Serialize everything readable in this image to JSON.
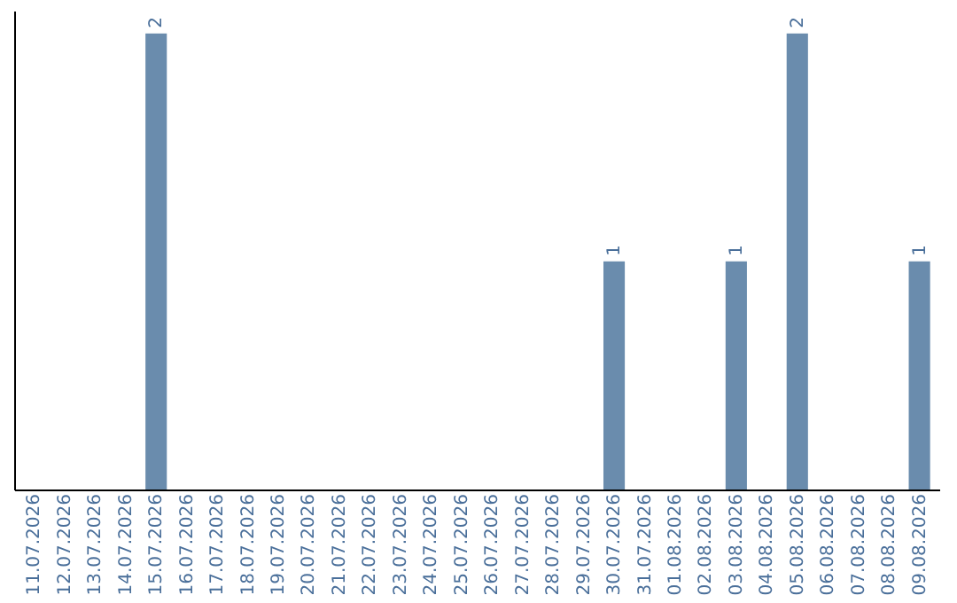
{
  "chart_data": {
    "type": "bar",
    "categories": [
      "11.07.2026",
      "12.07.2026",
      "13.07.2026",
      "14.07.2026",
      "15.07.2026",
      "16.07.2026",
      "17.07.2026",
      "18.07.2026",
      "19.07.2026",
      "20.07.2026",
      "21.07.2026",
      "22.07.2026",
      "23.07.2026",
      "24.07.2026",
      "25.07.2026",
      "26.07.2026",
      "27.07.2026",
      "28.07.2026",
      "29.07.2026",
      "30.07.2026",
      "31.07.2026",
      "01.08.2026",
      "02.08.2026",
      "03.08.2026",
      "04.08.2026",
      "05.08.2026",
      "06.08.2026",
      "07.08.2026",
      "08.08.2026",
      "09.08.2026"
    ],
    "values": [
      0,
      0,
      0,
      0,
      2,
      0,
      0,
      0,
      0,
      0,
      0,
      0,
      0,
      0,
      0,
      0,
      0,
      0,
      0,
      1,
      0,
      0,
      0,
      1,
      0,
      2,
      0,
      0,
      0,
      1
    ],
    "value_labels": [
      null,
      null,
      null,
      null,
      "2",
      null,
      null,
      null,
      null,
      null,
      null,
      null,
      null,
      null,
      null,
      null,
      null,
      null,
      null,
      "1",
      null,
      null,
      null,
      "1",
      null,
      "2",
      null,
      null,
      null,
      "1"
    ],
    "color": "#6a8cad",
    "ylim": [
      0,
      2.1
    ],
    "tick_labels": "x",
    "grid": false
  }
}
